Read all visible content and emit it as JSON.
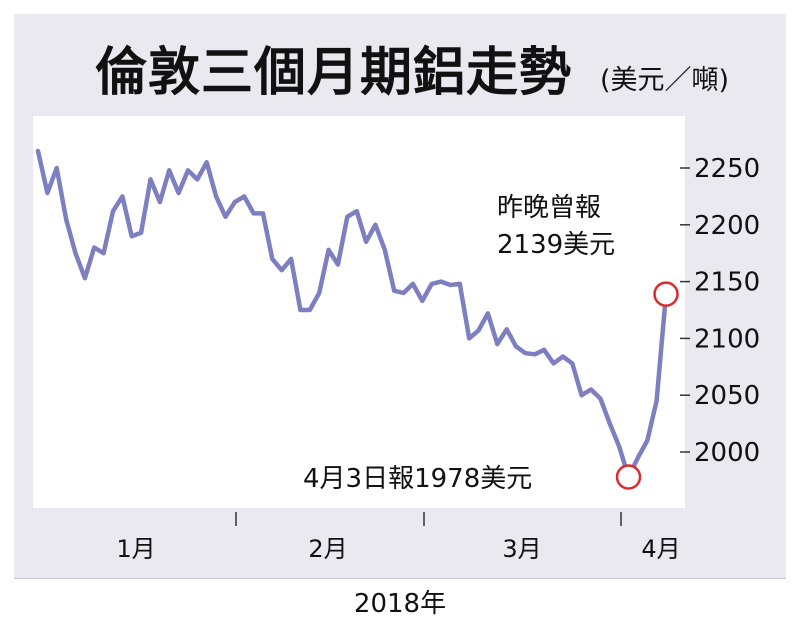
{
  "title": "倫敦三個月期鋁走勢",
  "unit": "(美元／噸)",
  "footer_year": "2018年",
  "annotations": {
    "last_line1": "昨晚曾報",
    "last_line2": "2139美元",
    "low": "4月3日報1978美元"
  },
  "colors": {
    "background": "#e9e9ef",
    "plot_bg": "#ffffff",
    "line": "#7d7fc0",
    "marker": "#d92d2d"
  },
  "chart_data": {
    "type": "line",
    "title": "倫敦三個月期鋁走勢",
    "ylabel": "(美元／噸)",
    "xlabel": "2018年",
    "ylim": [
      1965,
      2275
    ],
    "yticks": [
      2000,
      2050,
      2100,
      2150,
      2200,
      2250
    ],
    "xticks": [
      "1月",
      "2月",
      "3月",
      "4月"
    ],
    "grid": false,
    "series": [
      {
        "values": [
          2265,
          2228,
          2250,
          2205,
          2175,
          2153,
          2180,
          2175,
          2212,
          2225,
          2190,
          2193,
          2240,
          2220,
          2248,
          2228,
          2248,
          2240,
          2255,
          2225,
          2207,
          2220,
          2225,
          2210,
          2210,
          2170,
          2160,
          2170,
          2125,
          2125,
          2140,
          2178,
          2165,
          2207,
          2212,
          2185,
          2200,
          2178,
          2142,
          2140,
          2148,
          2133,
          2148,
          2150,
          2147,
          2148,
          2100,
          2107,
          2122,
          2095,
          2108,
          2093,
          2087,
          2086,
          2090,
          2078,
          2084,
          2078,
          2050,
          2055,
          2047,
          2025,
          2005,
          1978,
          1995,
          2010,
          2045,
          2139
        ]
      }
    ],
    "markers": [
      {
        "label": "low",
        "value": 1978
      },
      {
        "label": "last",
        "value": 2139
      }
    ]
  }
}
